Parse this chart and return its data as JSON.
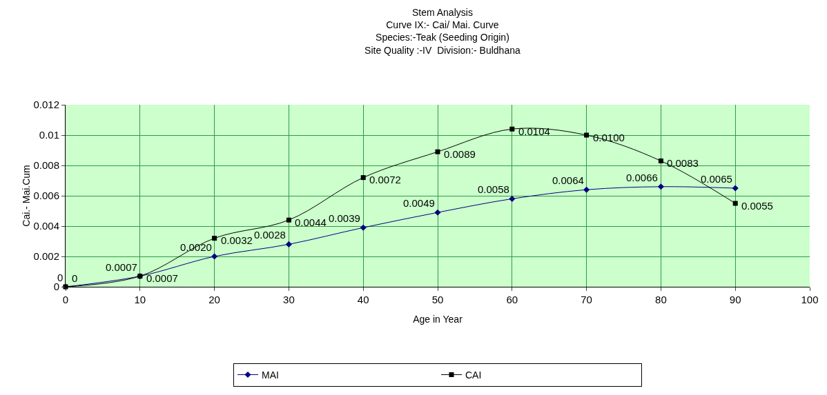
{
  "chart_data": {
    "type": "line",
    "title": "Stem Analysis\nCurve IX:- Cai/ Mai. Curve\nSpecies:-Teak (Seeding Origin)\nSite Quality :-IV  Division:- Buldhana",
    "xlabel": "Age in Year",
    "ylabel": "Cai.- Mai.Cum",
    "x": [
      0,
      10,
      20,
      30,
      40,
      50,
      60,
      70,
      80,
      90
    ],
    "series": [
      {
        "name": "MAI",
        "color": "#000080",
        "marker": "diamond",
        "values": [
          0,
          0.0007,
          0.002,
          0.0028,
          0.0039,
          0.0049,
          0.0058,
          0.0064,
          0.0066,
          0.0065
        ],
        "value_labels": [
          "0",
          "0.0007",
          "0.0020",
          "0.0028",
          "0.0039",
          "0.0049",
          "0.0058",
          "0.0064",
          "0.0066",
          "0.0065"
        ]
      },
      {
        "name": "CAI",
        "color": "#000000",
        "marker": "square",
        "values": [
          0,
          0.0007,
          0.0032,
          0.0044,
          0.0072,
          0.0089,
          0.0104,
          0.01,
          0.0083,
          0.0055
        ],
        "value_labels": [
          "0",
          "0.0007",
          "0.0032",
          "0.0044",
          "0.0072",
          "0.0089",
          "0.0104",
          "0.0100",
          "0.0083",
          "0.0055"
        ]
      }
    ],
    "xlim": [
      0,
      100
    ],
    "xticks": [
      0,
      10,
      20,
      30,
      40,
      50,
      60,
      70,
      80,
      90,
      100
    ],
    "ylim": [
      0,
      0.012
    ],
    "yticks": [
      0,
      0.002,
      0.004,
      0.006,
      0.008,
      0.01,
      0.012
    ],
    "grid": true,
    "legend": "bottom"
  }
}
